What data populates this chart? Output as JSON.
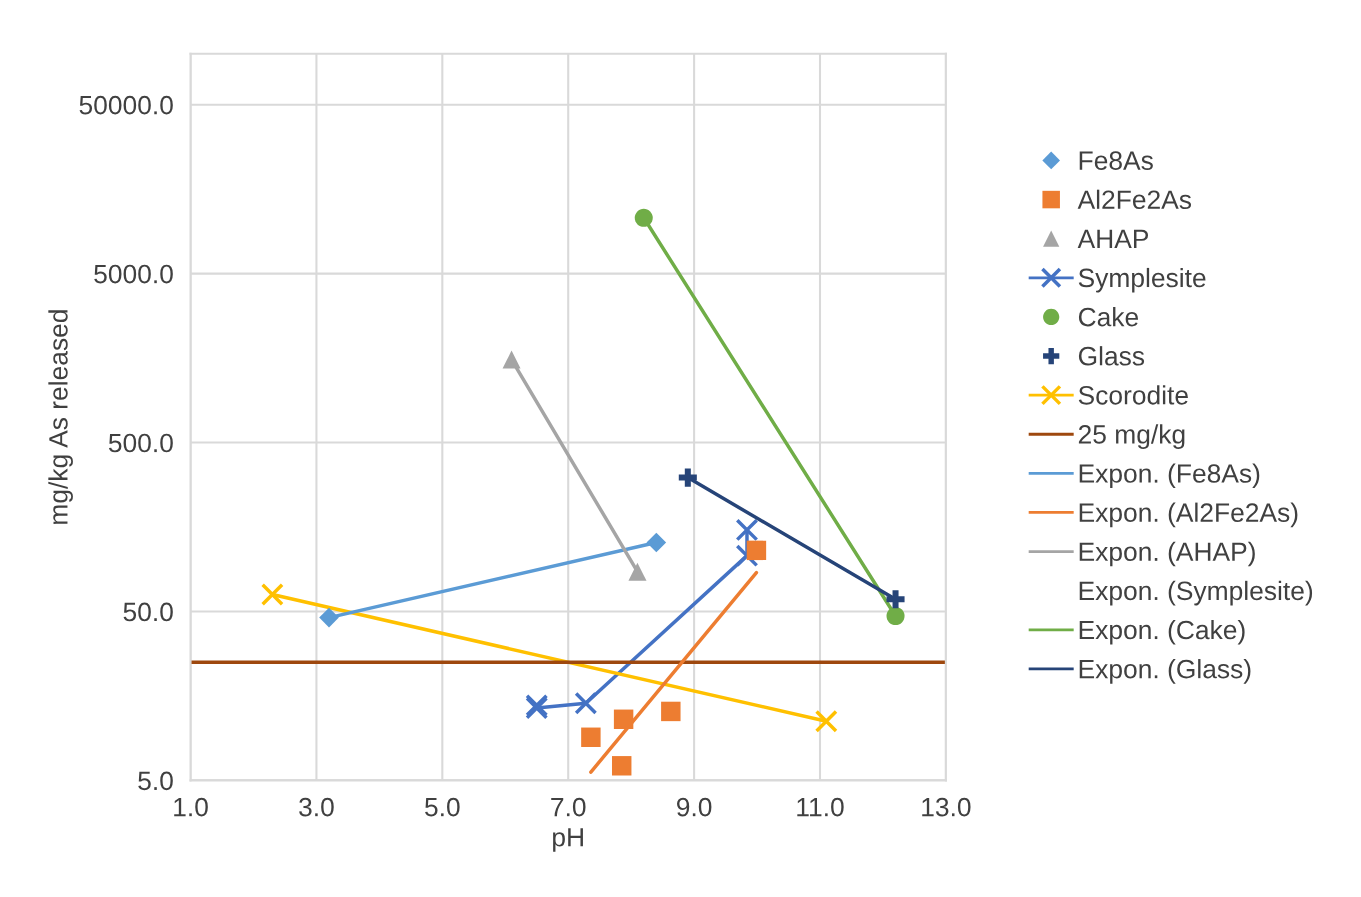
{
  "chart_data": {
    "type": "scatter",
    "xlabel": "pH",
    "ylabel": "mg/kg As released",
    "log": "y",
    "xlim": [
      1,
      13
    ],
    "ylim": [
      5,
      100000
    ],
    "xticks": [
      {
        "value": 1,
        "label": "1.0"
      },
      {
        "value": 3,
        "label": "3.0"
      },
      {
        "value": 5,
        "label": "5.0"
      },
      {
        "value": 7,
        "label": "7.0"
      },
      {
        "value": 9,
        "label": "9.0"
      },
      {
        "value": 11,
        "label": "11.0"
      },
      {
        "value": 13,
        "label": "13.0"
      }
    ],
    "yticks": [
      {
        "value": 5,
        "label": "5.0"
      },
      {
        "value": 50,
        "label": "50.0"
      },
      {
        "value": 500,
        "label": "500.0"
      },
      {
        "value": 5000,
        "label": "5000.0"
      },
      {
        "value": 50000,
        "label": "50000.0"
      }
    ],
    "grid": true,
    "legend": "right",
    "series": [
      {
        "name": "Fe8As",
        "marker": "diamond",
        "color": "#5b9bd5",
        "x": [
          3.2,
          8.4
        ],
        "values": [
          46,
          128
        ]
      },
      {
        "name": "Al2Fe2As",
        "marker": "square",
        "color": "#ed7d31",
        "x": [
          7.36,
          7.85,
          7.88,
          8.63,
          9.99
        ],
        "values": [
          9.0,
          6.1,
          11.5,
          12.8,
          115
        ]
      },
      {
        "name": "AHAP",
        "marker": "triangle",
        "color": "#a5a5a5",
        "x": [
          6.1,
          8.1
        ],
        "values": [
          1550,
          86
        ]
      },
      {
        "name": "Symplesite",
        "type": "line",
        "marker": "cross",
        "color": "#4472c4",
        "x": [
          6.5,
          6.5,
          7.28,
          9.84,
          9.84
        ],
        "values": [
          13.9,
          13.4,
          14.3,
          107,
          152
        ]
      },
      {
        "name": "Cake",
        "marker": "circle",
        "color": "#70ad47",
        "x": [
          8.2,
          12.2
        ],
        "values": [
          10700,
          47
        ]
      },
      {
        "name": "Glass",
        "marker": "plus",
        "color": "#264478",
        "x": [
          8.9,
          12.2
        ],
        "values": [
          310,
          59
        ]
      },
      {
        "name": "Scorodite",
        "type": "line",
        "marker": "cross",
        "color": "#ffc000",
        "x": [
          2.3,
          11.1
        ],
        "values": [
          63,
          11.2
        ]
      },
      {
        "name": "25 mg/kg",
        "type": "line",
        "marker": "none",
        "color": "#9e480e",
        "x": [
          1,
          13
        ],
        "values": [
          25,
          25
        ]
      },
      {
        "name": "Expon. (Fe8As)",
        "type": "line",
        "marker": "none",
        "color": "#5b9bd5",
        "x": [
          3.2,
          8.4
        ],
        "values": [
          46,
          128
        ]
      },
      {
        "name": "Expon. (Al2Fe2As)",
        "type": "line",
        "marker": "none",
        "color": "#ed7d31",
        "x": [
          7.36,
          9.99
        ],
        "values": [
          5.6,
          85
        ]
      },
      {
        "name": "Expon. (AHAP)",
        "type": "line",
        "marker": "none",
        "color": "#a5a5a5",
        "x": [
          6.1,
          8.1
        ],
        "values": [
          1550,
          86
        ]
      },
      {
        "name": "Expon. (Symplesite)",
        "type": "line",
        "marker": "none",
        "color": null
      },
      {
        "name": "Expon. (Cake)",
        "type": "line",
        "marker": "none",
        "color": "#70ad47",
        "x": [
          8.2,
          12.2
        ],
        "values": [
          10700,
          47
        ]
      },
      {
        "name": "Expon. (Glass)",
        "type": "line",
        "marker": "none",
        "color": "#264478",
        "x": [
          8.9,
          12.2
        ],
        "values": [
          310,
          59
        ]
      }
    ]
  }
}
